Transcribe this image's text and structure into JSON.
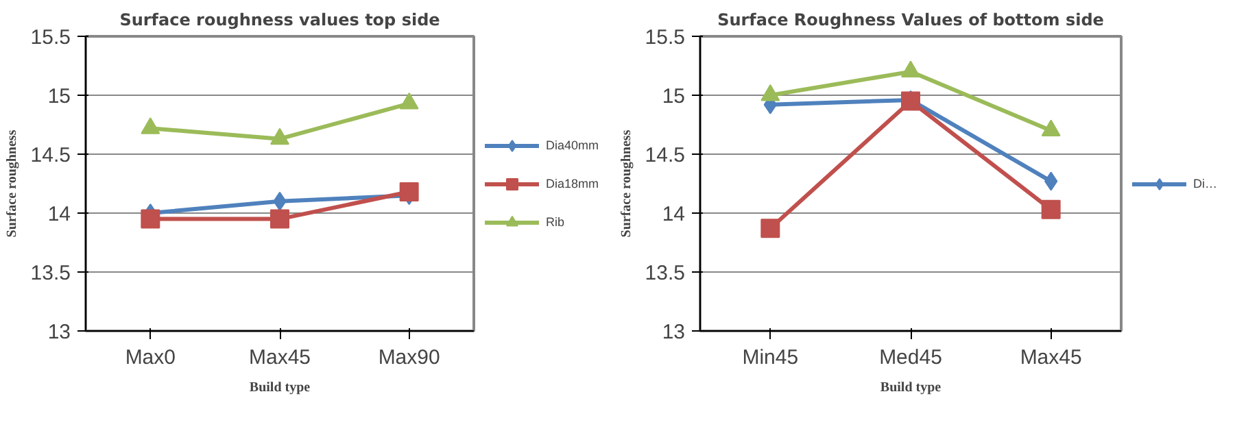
{
  "chart_data": [
    {
      "type": "line",
      "title": "Surface roughness values top side",
      "xlabel": "Build type",
      "ylabel": "Surface roughness",
      "categories": [
        "Max0",
        "Max45",
        "Max90"
      ],
      "ylim": [
        13,
        15.5
      ],
      "yticks": [
        13,
        13.5,
        14,
        14.5,
        15,
        15.5
      ],
      "grid": "y",
      "legend": "right",
      "series": [
        {
          "name": "Dia40mm",
          "color": "#4f81bd",
          "marker": "diamond",
          "values": [
            14.0,
            14.1,
            14.15
          ]
        },
        {
          "name": "Dia18mm",
          "color": "#c0504d",
          "marker": "square",
          "values": [
            13.95,
            13.95,
            14.18
          ]
        },
        {
          "name": "Rib",
          "color": "#9bbb59",
          "marker": "triangle",
          "values": [
            14.72,
            14.63,
            14.93
          ]
        }
      ]
    },
    {
      "type": "line",
      "title": "Surface Roughness Values of bottom side",
      "xlabel": "Build type",
      "ylabel": "Surface roughness",
      "categories": [
        "Min45",
        "Med45",
        "Max45"
      ],
      "ylim": [
        13,
        15.5
      ],
      "yticks": [
        13,
        13.5,
        14,
        14.5,
        15,
        15.5
      ],
      "grid": "y",
      "legend": "right",
      "series": [
        {
          "name": "Di…",
          "color": "#4f81bd",
          "marker": "diamond",
          "values": [
            14.92,
            14.96,
            14.27
          ]
        },
        {
          "color": "#c0504d",
          "marker": "square",
          "values": [
            13.87,
            14.95,
            14.03
          ]
        },
        {
          "color": "#9bbb59",
          "marker": "triangle",
          "values": [
            15.0,
            15.2,
            14.7
          ]
        }
      ]
    }
  ]
}
